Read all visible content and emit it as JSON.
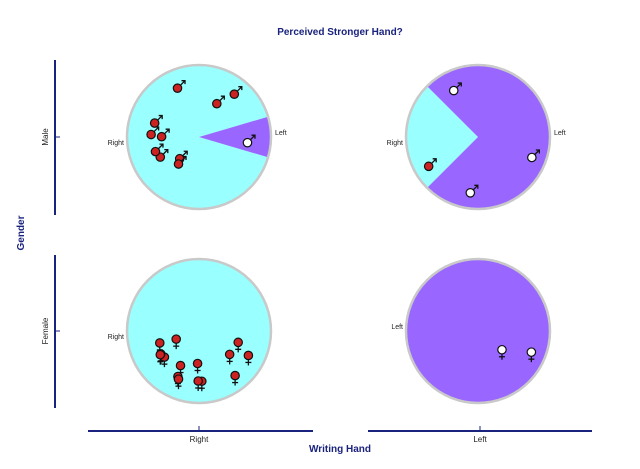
{
  "chart_data": {
    "type": "pie",
    "title": "Perceived Stronger Hand?",
    "xlabel": "Writing Hand",
    "ylabel": "Gender",
    "x_categories": [
      "Right",
      "Left"
    ],
    "y_categories": [
      "Male",
      "Female"
    ],
    "slice_labels": [
      "Right",
      "Left"
    ],
    "colors": {
      "Right": "#99ffff",
      "Left": "#9966ff",
      "border": "#c9c9c9",
      "axis": "#1a237e",
      "male_marker": "#cc2222",
      "left_marker": "#ffffff"
    },
    "marker_icons": {
      "Male": "male-symbol-icon",
      "Female": "female-symbol-icon"
    },
    "panels": [
      {
        "gender": "Male",
        "writing_hand": "Right",
        "counts": {
          "Right": 10,
          "Left": 1
        }
      },
      {
        "gender": "Male",
        "writing_hand": "Left",
        "counts": {
          "Right": 1,
          "Left": 3
        }
      },
      {
        "gender": "Female",
        "writing_hand": "Right",
        "counts": {
          "Right": 15,
          "Left": 0
        }
      },
      {
        "gender": "Female",
        "writing_hand": "Left",
        "counts": {
          "Right": 0,
          "Left": 2
        }
      }
    ]
  }
}
